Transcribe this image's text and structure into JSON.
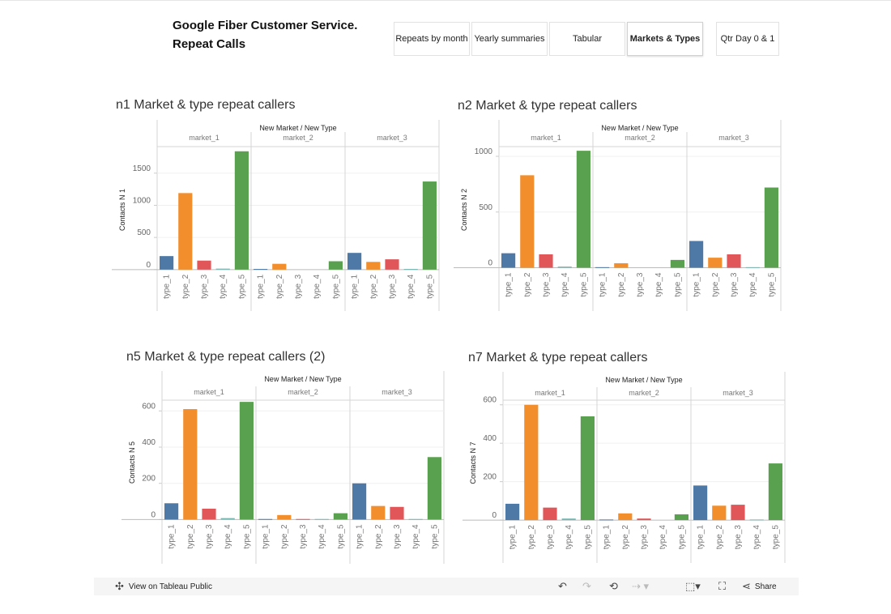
{
  "dashboard": {
    "title_line1": "Google Fiber Customer Service.",
    "title_line2": "Repeat Calls",
    "tabs": [
      {
        "label": "Repeats by month",
        "active": false
      },
      {
        "label": "Yearly summaries",
        "active": false
      },
      {
        "label": "Tabular",
        "active": false
      },
      {
        "label": "Markets & Types",
        "active": true
      },
      {
        "label": "Qtr Day 0 & 1",
        "active": false
      }
    ]
  },
  "chart_data": [
    {
      "type": "bar",
      "title": "n1 Market & type repeat callers",
      "header": "New Market / New Type",
      "markets": [
        "market_1",
        "market_2",
        "market_3"
      ],
      "categories": [
        "type_1",
        "type_2",
        "type_3",
        "type_4",
        "type_5"
      ],
      "ylabel": "Contacts N 1",
      "yticks": [
        0,
        500,
        1000,
        1500
      ],
      "ylim": [
        -40,
        1900
      ],
      "values": [
        [
          210,
          1190,
          140,
          15,
          1840
        ],
        [
          10,
          90,
          0,
          0,
          130
        ],
        [
          260,
          120,
          160,
          10,
          1370
        ]
      ]
    },
    {
      "type": "bar",
      "title": "n2 Market & type repeat callers",
      "header": "New Market / New Type",
      "markets": [
        "market_1",
        "market_2",
        "market_3"
      ],
      "categories": [
        "type_1",
        "type_2",
        "type_3",
        "type_4",
        "type_5"
      ],
      "ylabel": "Contacts N 2",
      "yticks": [
        0,
        500,
        1000
      ],
      "ylim": [
        -40,
        1080
      ],
      "values": [
        [
          130,
          830,
          120,
          10,
          1050
        ],
        [
          5,
          40,
          0,
          0,
          70
        ],
        [
          240,
          90,
          120,
          5,
          720
        ]
      ]
    },
    {
      "type": "bar",
      "title": "n5 Market & type repeat callers (2)",
      "header": "New Market / New Type",
      "markets": [
        "market_1",
        "market_2",
        "market_3"
      ],
      "categories": [
        "type_1",
        "type_2",
        "type_3",
        "type_4",
        "type_5"
      ],
      "ylabel": "Contacts N 5",
      "yticks": [
        0,
        200,
        400,
        600
      ],
      "ylim": [
        -25,
        655
      ],
      "values": [
        [
          90,
          610,
          60,
          8,
          650
        ],
        [
          3,
          25,
          3,
          3,
          35
        ],
        [
          200,
          75,
          70,
          3,
          345
        ]
      ]
    },
    {
      "type": "bar",
      "title": "n7 Market & type repeat callers",
      "header": "New Market / New Type",
      "markets": [
        "market_1",
        "market_2",
        "market_3"
      ],
      "categories": [
        "type_1",
        "type_2",
        "type_3",
        "type_4",
        "type_5"
      ],
      "ylabel": "Contacts N 7",
      "yticks": [
        0,
        200,
        400,
        600
      ],
      "ylim": [
        -25,
        620
      ],
      "values": [
        [
          85,
          600,
          65,
          8,
          540
        ],
        [
          3,
          35,
          8,
          0,
          30
        ],
        [
          180,
          75,
          80,
          3,
          295
        ]
      ]
    }
  ],
  "colors": {
    "type_1": "#4e79a7",
    "type_2": "#f28e2b",
    "type_3": "#e15759",
    "type_4": "#76b7b2",
    "type_5": "#59a14f"
  },
  "toolbar": {
    "view_label": "View on Tableau Public",
    "share_label": "Share",
    "icons": [
      "tableau-icon",
      "undo-icon",
      "redo-icon",
      "revert-icon",
      "refresh-icon",
      "download-icon",
      "fullscreen-icon",
      "share-icon"
    ]
  }
}
